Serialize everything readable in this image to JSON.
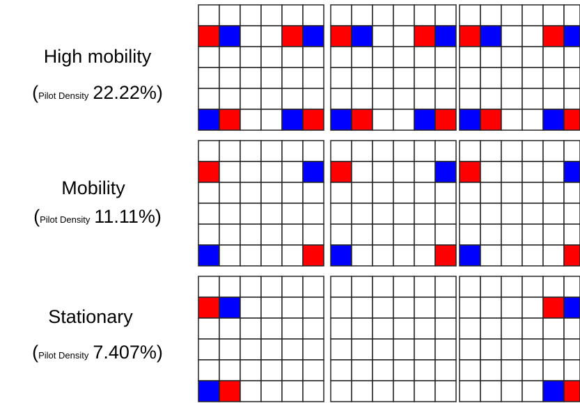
{
  "rows": [
    {
      "title": "High mobility",
      "density_open": "(",
      "density_label": "Pilot Density",
      "density_value": "22.22%",
      "density_close": ")"
    },
    {
      "title": "Mobility",
      "density_open": "(",
      "density_label": "Pilot Density",
      "density_value": "11.11%",
      "density_close": ")"
    },
    {
      "title": "Stationary",
      "density_open": "(",
      "density_label": "Pilot Density",
      "density_value": "7.407%",
      "density_close": ")"
    }
  ]
}
